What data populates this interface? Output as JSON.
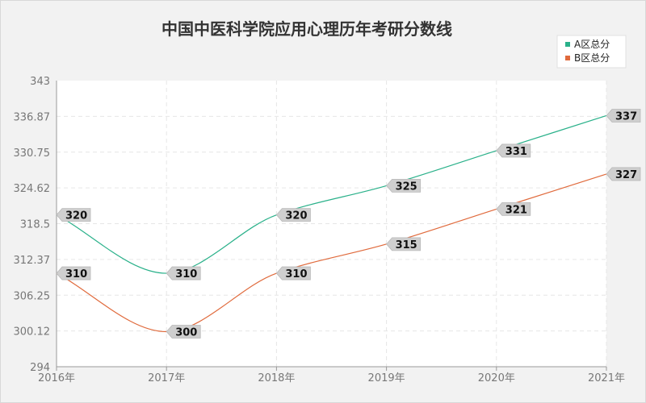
{
  "chart_data": {
    "type": "line",
    "title": "中国中医科学院应用心理历年考研分数线",
    "categories": [
      "2016年",
      "2017年",
      "2018年",
      "2019年",
      "2020年",
      "2021年"
    ],
    "ylim": [
      294,
      343
    ],
    "yticks": [
      "343",
      "336.87",
      "330.75",
      "324.62",
      "318.5",
      "312.37",
      "306.25",
      "300.12",
      "294"
    ],
    "grid": true,
    "legend_position": "top-right",
    "series": [
      {
        "name": "A区总分",
        "color": "#2ab18a",
        "values": [
          320,
          310,
          320,
          325,
          331,
          337
        ]
      },
      {
        "name": "B区总分",
        "color": "#e06a3c",
        "values": [
          310,
          300,
          310,
          315,
          321,
          327
        ]
      }
    ]
  }
}
